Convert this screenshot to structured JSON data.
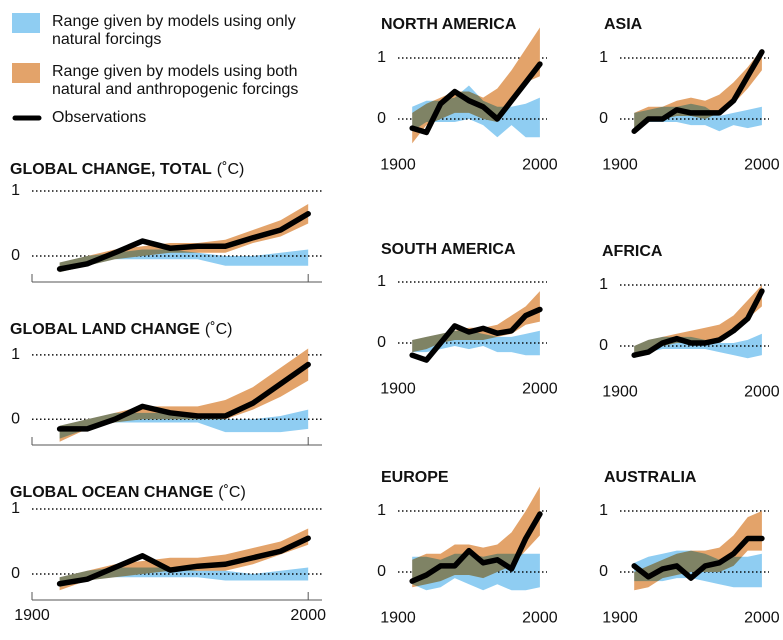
{
  "legend": [
    {
      "label": "Range given by models using only natural forcings",
      "color": "#8fcdf2"
    },
    {
      "label": "Range given by models using both natural and anthropogenic forcings",
      "color": "#e3a36a"
    },
    {
      "label": "Observations",
      "color": "#000000"
    }
  ],
  "chart_data": [
    {
      "type": "band-line",
      "title": "GLOBAL CHANGE, TOTAL",
      "unit": "(˚C)",
      "x": [
        1910,
        1920,
        1930,
        1940,
        1950,
        1960,
        1970,
        1980,
        1990,
        2000
      ],
      "natural_low": [
        -0.25,
        -0.15,
        -0.05,
        -0.05,
        -0.05,
        -0.05,
        -0.15,
        -0.15,
        -0.15,
        -0.15
      ],
      "natural_high": [
        -0.1,
        0,
        0.05,
        0.1,
        0.1,
        0.05,
        0,
        0,
        0.05,
        0.1
      ],
      "combined_low": [
        -0.25,
        -0.15,
        -0.05,
        0,
        0.05,
        0.05,
        0.05,
        0.2,
        0.3,
        0.5
      ],
      "combined_high": [
        -0.1,
        0,
        0.1,
        0.15,
        0.2,
        0.2,
        0.25,
        0.4,
        0.55,
        0.8
      ],
      "observed": [
        -0.2,
        -0.12,
        0.05,
        0.23,
        0.12,
        0.15,
        0.15,
        0.28,
        0.4,
        0.65
      ],
      "xlim": [
        1900,
        2005
      ],
      "ylim": [
        -0.4,
        1.2
      ],
      "yticks": [
        0,
        1
      ],
      "xticks": [
        1900,
        2000
      ],
      "xtick_labels": false,
      "axis_line": true
    },
    {
      "type": "band-line",
      "title": "GLOBAL LAND CHANGE",
      "unit": "(˚C)",
      "x": [
        1910,
        1920,
        1930,
        1940,
        1950,
        1960,
        1970,
        1980,
        1990,
        2000
      ],
      "natural_low": [
        -0.3,
        -0.15,
        -0.05,
        -0.05,
        -0.05,
        -0.05,
        -0.2,
        -0.2,
        -0.2,
        -0.15
      ],
      "natural_high": [
        -0.1,
        0,
        0.1,
        0.1,
        0.1,
        0.05,
        0,
        0,
        0.05,
        0.15
      ],
      "combined_low": [
        -0.35,
        -0.15,
        -0.05,
        0,
        0,
        0,
        0,
        0.15,
        0.35,
        0.6
      ],
      "combined_high": [
        -0.1,
        0,
        0.1,
        0.2,
        0.2,
        0.2,
        0.3,
        0.5,
        0.8,
        1.1
      ],
      "observed": [
        -0.15,
        -0.15,
        0,
        0.2,
        0.1,
        0.05,
        0.05,
        0.25,
        0.55,
        0.85
      ],
      "xlim": [
        1900,
        2005
      ],
      "ylim": [
        -0.4,
        1.2
      ],
      "yticks": [
        0,
        1
      ],
      "xticks": [
        1900,
        2000
      ],
      "xtick_labels": false,
      "axis_line": true
    },
    {
      "type": "band-line",
      "title": "GLOBAL OCEAN CHANGE",
      "unit": "(˚C)",
      "x": [
        1910,
        1920,
        1930,
        1940,
        1950,
        1960,
        1970,
        1980,
        1990,
        2000
      ],
      "natural_low": [
        -0.2,
        -0.1,
        -0.05,
        -0.05,
        -0.05,
        -0.05,
        -0.1,
        -0.1,
        -0.1,
        -0.1
      ],
      "natural_high": [
        -0.05,
        0.05,
        0.1,
        0.1,
        0.1,
        0.05,
        0.05,
        0,
        0.05,
        0.1
      ],
      "combined_low": [
        -0.25,
        -0.1,
        -0.05,
        0,
        0.05,
        0.05,
        0.05,
        0.15,
        0.3,
        0.45
      ],
      "combined_high": [
        -0.05,
        0.05,
        0.15,
        0.2,
        0.25,
        0.25,
        0.3,
        0.4,
        0.5,
        0.7
      ],
      "observed": [
        -0.15,
        -0.08,
        0.1,
        0.28,
        0.06,
        0.12,
        0.15,
        0.25,
        0.35,
        0.55
      ],
      "xlim": [
        1900,
        2005
      ],
      "ylim": [
        -0.4,
        1.2
      ],
      "yticks": [
        0,
        1
      ],
      "xticks": [
        1900,
        2000
      ],
      "axis_line": true
    },
    {
      "type": "band-line",
      "title": "NORTH AMERICA",
      "x": [
        1910,
        1920,
        1930,
        1940,
        1950,
        1960,
        1970,
        1980,
        1990,
        2000
      ],
      "natural_low": [
        -0.2,
        -0.05,
        -0.05,
        -0.05,
        0,
        -0.1,
        -0.3,
        -0.1,
        -0.3,
        -0.3
      ],
      "natural_high": [
        0.2,
        0.3,
        0.3,
        0.35,
        0.55,
        0.3,
        0.2,
        0.2,
        0.25,
        0.35
      ],
      "combined_low": [
        -0.4,
        -0.1,
        0,
        0.1,
        0.1,
        0,
        -0.05,
        0.3,
        0.6,
        0.7
      ],
      "combined_high": [
        0.1,
        0.25,
        0.35,
        0.45,
        0.45,
        0.35,
        0.5,
        0.8,
        1.15,
        1.5
      ],
      "observed": [
        -0.15,
        -0.22,
        0.25,
        0.45,
        0.3,
        0.2,
        0,
        0.3,
        0.6,
        0.9
      ],
      "xlim": [
        1900,
        2005
      ],
      "ylim": [
        -0.5,
        1.5
      ],
      "yticks": [
        0,
        1
      ],
      "xticks": [
        1900,
        2000
      ]
    },
    {
      "type": "band-line",
      "title": "ASIA",
      "x": [
        1910,
        1920,
        1930,
        1940,
        1950,
        1960,
        1970,
        1980,
        1990,
        2000
      ],
      "natural_low": [
        -0.15,
        -0.05,
        -0.05,
        -0.05,
        -0.1,
        -0.1,
        -0.2,
        -0.1,
        -0.15,
        -0.1
      ],
      "natural_high": [
        0.1,
        0.15,
        0.2,
        0.2,
        0.25,
        0.2,
        0.05,
        0.1,
        0.15,
        0.2
      ],
      "combined_low": [
        -0.2,
        -0.05,
        0,
        0.05,
        0.05,
        0,
        0.1,
        0.25,
        0.5,
        0.8
      ],
      "combined_high": [
        0.1,
        0.2,
        0.2,
        0.3,
        0.35,
        0.3,
        0.4,
        0.6,
        0.85,
        1.15
      ],
      "observed": [
        -0.2,
        0,
        0,
        0.15,
        0.1,
        0.1,
        0.1,
        0.3,
        0.7,
        1.1
      ],
      "xlim": [
        1900,
        2005
      ],
      "ylim": [
        -0.5,
        1.5
      ],
      "yticks": [
        0,
        1
      ],
      "xticks": [
        1900,
        2000
      ]
    },
    {
      "type": "band-line",
      "title": "SOUTH AMERICA",
      "x": [
        1910,
        1920,
        1930,
        1940,
        1950,
        1960,
        1970,
        1980,
        1990,
        2000
      ],
      "natural_low": [
        -0.15,
        -0.15,
        -0.1,
        -0.05,
        -0.1,
        -0.05,
        -0.15,
        -0.15,
        -0.2,
        -0.2
      ],
      "natural_high": [
        0.05,
        0.1,
        0.15,
        0.2,
        0.2,
        0.15,
        0.1,
        0.1,
        0.15,
        0.2
      ],
      "combined_low": [
        -0.15,
        -0.1,
        0,
        0.05,
        0.05,
        0.05,
        0.1,
        0.15,
        0.3,
        0.35
      ],
      "combined_high": [
        0.05,
        0.1,
        0.15,
        0.2,
        0.25,
        0.25,
        0.3,
        0.45,
        0.6,
        0.85
      ],
      "observed": [
        -0.2,
        -0.28,
        0,
        0.28,
        0.18,
        0.24,
        0.16,
        0.2,
        0.45,
        0.55
      ],
      "xlim": [
        1900,
        2005
      ],
      "ylim": [
        -0.5,
        1.5
      ],
      "yticks": [
        0,
        1
      ],
      "xticks": [
        1900,
        2000
      ]
    },
    {
      "type": "band-line",
      "title": "AFRICA",
      "x": [
        1910,
        1920,
        1930,
        1940,
        1950,
        1960,
        1970,
        1980,
        1990,
        2000
      ],
      "natural_low": [
        -0.15,
        -0.1,
        -0.05,
        -0.05,
        -0.05,
        -0.05,
        -0.1,
        -0.15,
        -0.2,
        -0.15
      ],
      "natural_high": [
        0,
        0.1,
        0.15,
        0.15,
        0.15,
        0.1,
        0.05,
        0.05,
        0.1,
        0.2
      ],
      "combined_low": [
        -0.15,
        -0.05,
        0,
        0.05,
        0.05,
        0.05,
        0.1,
        0.25,
        0.45,
        0.65
      ],
      "combined_high": [
        0,
        0.1,
        0.15,
        0.2,
        0.25,
        0.3,
        0.35,
        0.5,
        0.75,
        1
      ],
      "observed": [
        -0.15,
        -0.1,
        0.05,
        0.12,
        0.05,
        0.05,
        0.1,
        0.25,
        0.45,
        0.9
      ],
      "xlim": [
        1900,
        2005
      ],
      "ylim": [
        -0.5,
        1.5
      ],
      "yticks": [
        0,
        1
      ],
      "xticks": [
        1900,
        2000
      ]
    },
    {
      "type": "band-line",
      "title": "EUROPE",
      "x": [
        1910,
        1920,
        1930,
        1940,
        1950,
        1960,
        1970,
        1980,
        1990,
        2000
      ],
      "natural_low": [
        -0.2,
        -0.3,
        -0.25,
        -0.1,
        -0.2,
        -0.3,
        -0.2,
        -0.3,
        -0.3,
        -0.25
      ],
      "natural_high": [
        0.25,
        0.25,
        0.2,
        0.3,
        0.3,
        0.25,
        0.3,
        0.3,
        0.3,
        0.3
      ],
      "combined_low": [
        -0.25,
        -0.2,
        -0.15,
        -0.05,
        -0.05,
        -0.1,
        0,
        0.1,
        0.35,
        0.6
      ],
      "combined_high": [
        0.2,
        0.3,
        0.3,
        0.45,
        0.45,
        0.4,
        0.45,
        0.65,
        1,
        1.4
      ],
      "observed": [
        -0.15,
        -0.05,
        0.1,
        0.1,
        0.35,
        0.15,
        0.2,
        0.05,
        0.55,
        0.95
      ],
      "xlim": [
        1900,
        2005
      ],
      "ylim": [
        -0.5,
        1.5
      ],
      "yticks": [
        0,
        1
      ],
      "xticks": [
        1900,
        2000
      ]
    },
    {
      "type": "band-line",
      "title": "AUSTRALIA",
      "x": [
        1910,
        1920,
        1930,
        1940,
        1950,
        1960,
        1970,
        1980,
        1990,
        2000
      ],
      "natural_low": [
        -0.15,
        -0.15,
        -0.15,
        -0.1,
        -0.1,
        -0.15,
        -0.2,
        -0.25,
        -0.25,
        -0.25
      ],
      "natural_high": [
        0.15,
        0.25,
        0.3,
        0.35,
        0.35,
        0.3,
        0.2,
        0.25,
        0.25,
        0.3
      ],
      "combined_low": [
        -0.3,
        -0.25,
        -0.1,
        -0.05,
        0,
        0,
        0,
        0.1,
        0.35,
        0.35
      ],
      "combined_high": [
        0,
        0.1,
        0.2,
        0.3,
        0.35,
        0.35,
        0.4,
        0.6,
        0.9,
        1
      ],
      "observed": [
        0.1,
        -0.08,
        0.05,
        0.1,
        -0.1,
        0.1,
        0.15,
        0.3,
        0.55,
        0.55
      ],
      "xlim": [
        1900,
        2005
      ],
      "ylim": [
        -0.5,
        1.5
      ],
      "yticks": [
        0,
        1
      ],
      "xticks": [
        1900,
        2000
      ]
    }
  ]
}
